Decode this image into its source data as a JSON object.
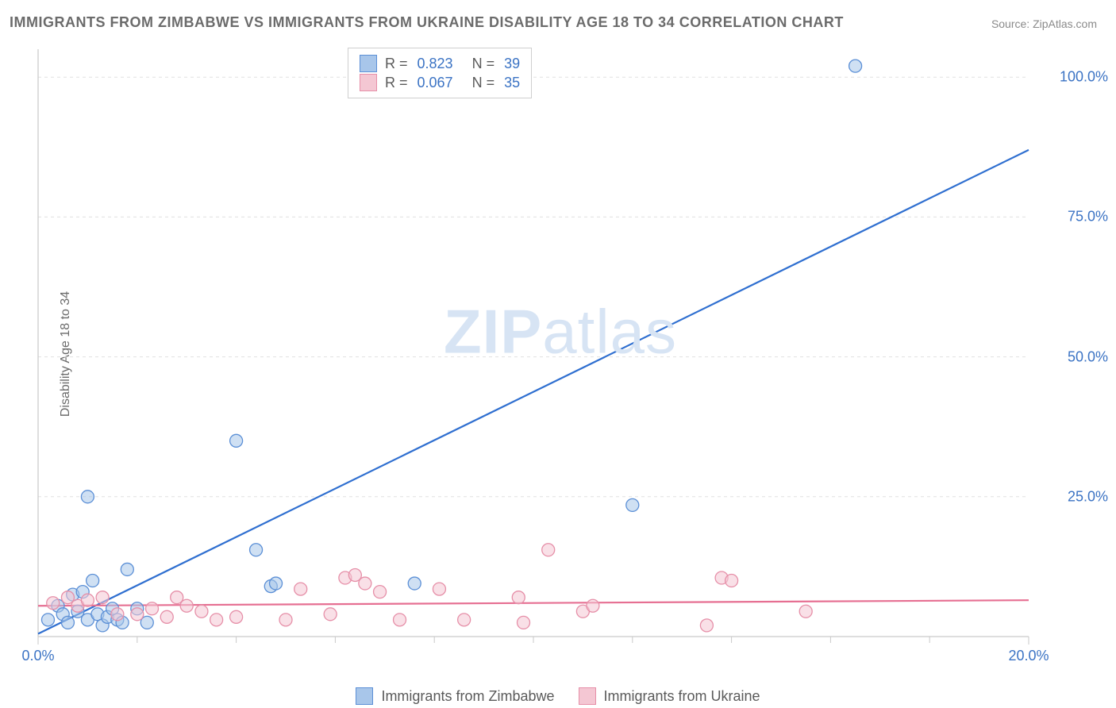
{
  "title": "IMMIGRANTS FROM ZIMBABWE VS IMMIGRANTS FROM UKRAINE DISABILITY AGE 18 TO 34 CORRELATION CHART",
  "source": "Source: ZipAtlas.com",
  "y_axis_label": "Disability Age 18 to 34",
  "watermark": {
    "zip": "ZIP",
    "atlas": "atlas"
  },
  "chart": {
    "type": "scatter",
    "xlim": [
      0,
      20
    ],
    "ylim": [
      0,
      105
    ],
    "x_ticks": [
      0,
      20
    ],
    "x_tick_labels": [
      "0.0%",
      "20.0%"
    ],
    "x_minor_ticks": [
      2,
      4,
      6,
      8,
      10,
      12,
      14,
      16,
      18
    ],
    "y_ticks": [
      25,
      50,
      75,
      100
    ],
    "y_tick_labels": [
      "25.0%",
      "50.0%",
      "75.0%",
      "100.0%"
    ],
    "background_color": "#ffffff",
    "grid_color": "#e0e0e0",
    "axis_color": "#c9c9c9",
    "tick_color": "#c9c9c9",
    "marker_radius": 8,
    "marker_opacity": 0.55,
    "line_width": 2.2,
    "series": [
      {
        "name": "Immigrants from Zimbabwe",
        "color_fill": "#a8c6ea",
        "color_stroke": "#5b8fd6",
        "line_color": "#2f6fd0",
        "R": "0.823",
        "N": "39",
        "trend": {
          "x1": 0,
          "y1": 0.5,
          "x2": 20,
          "y2": 87
        },
        "points": [
          [
            0.2,
            3.0
          ],
          [
            0.4,
            5.5
          ],
          [
            0.5,
            4.0
          ],
          [
            0.6,
            2.5
          ],
          [
            0.7,
            7.5
          ],
          [
            0.8,
            4.5
          ],
          [
            0.9,
            8.0
          ],
          [
            1.0,
            3.0
          ],
          [
            1.1,
            10.0
          ],
          [
            1.0,
            25.0
          ],
          [
            1.2,
            4.0
          ],
          [
            1.3,
            2.0
          ],
          [
            1.4,
            3.5
          ],
          [
            1.5,
            5.0
          ],
          [
            1.6,
            3.0
          ],
          [
            1.7,
            2.5
          ],
          [
            1.8,
            12.0
          ],
          [
            2.0,
            5.0
          ],
          [
            2.2,
            2.5
          ],
          [
            4.0,
            35.0
          ],
          [
            4.4,
            15.5
          ],
          [
            4.7,
            9.0
          ],
          [
            4.8,
            9.5
          ],
          [
            7.6,
            9.5
          ],
          [
            12.0,
            23.5
          ],
          [
            16.5,
            102.0
          ]
        ]
      },
      {
        "name": "Immigrants from Ukraine",
        "color_fill": "#f4c7d3",
        "color_stroke": "#e68fa8",
        "line_color": "#e66f92",
        "R": "0.067",
        "N": "35",
        "trend": {
          "x1": 0,
          "y1": 5.5,
          "x2": 20,
          "y2": 6.5
        },
        "points": [
          [
            0.3,
            6.0
          ],
          [
            0.6,
            7.0
          ],
          [
            0.8,
            5.5
          ],
          [
            1.0,
            6.5
          ],
          [
            1.3,
            7.0
          ],
          [
            1.6,
            4.0
          ],
          [
            2.0,
            4.0
          ],
          [
            2.3,
            5.0
          ],
          [
            2.6,
            3.5
          ],
          [
            2.8,
            7.0
          ],
          [
            3.0,
            5.5
          ],
          [
            3.3,
            4.5
          ],
          [
            3.6,
            3.0
          ],
          [
            4.0,
            3.5
          ],
          [
            5.0,
            3.0
          ],
          [
            5.3,
            8.5
          ],
          [
            5.9,
            4.0
          ],
          [
            6.2,
            10.5
          ],
          [
            6.4,
            11.0
          ],
          [
            6.6,
            9.5
          ],
          [
            6.9,
            8.0
          ],
          [
            7.3,
            3.0
          ],
          [
            8.1,
            8.5
          ],
          [
            8.6,
            3.0
          ],
          [
            9.7,
            7.0
          ],
          [
            9.8,
            2.5
          ],
          [
            10.3,
            15.5
          ],
          [
            11.0,
            4.5
          ],
          [
            11.2,
            5.5
          ],
          [
            13.5,
            2.0
          ],
          [
            13.8,
            10.5
          ],
          [
            14.0,
            10.0
          ],
          [
            15.5,
            4.5
          ]
        ]
      }
    ]
  },
  "legend_top": {
    "r_label": "R =",
    "n_label": "N ="
  },
  "legend_bottom": {
    "items": [
      {
        "label": "Immigrants from Zimbabwe",
        "series": 0
      },
      {
        "label": "Immigrants from Ukraine",
        "series": 1
      }
    ]
  }
}
